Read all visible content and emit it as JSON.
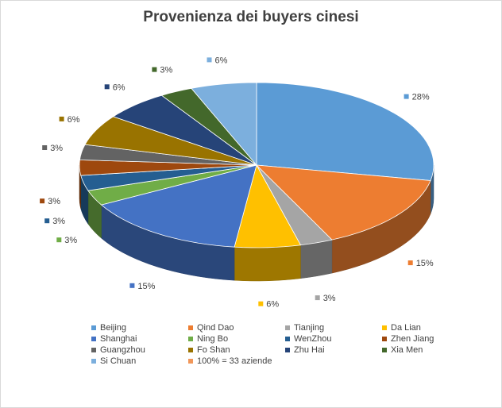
{
  "chart_data": {
    "type": "pie",
    "title": "Provenienza dei buyers cinesi",
    "slices": [
      {
        "label": "Beijing",
        "value": 28,
        "value_label": "28%",
        "color": "#5b9bd5"
      },
      {
        "label": "Qind Dao",
        "value": 15,
        "value_label": "15%",
        "color": "#ed7d31"
      },
      {
        "label": "Tianjing",
        "value": 3,
        "value_label": "3%",
        "color": "#a5a5a5"
      },
      {
        "label": "Da Lian",
        "value": 6,
        "value_label": "6%",
        "color": "#ffc000"
      },
      {
        "label": "Shanghai",
        "value": 15,
        "value_label": "15%",
        "color": "#4472c4"
      },
      {
        "label": "Ning Bo",
        "value": 3,
        "value_label": "3%",
        "color": "#70ad47"
      },
      {
        "label": "WenZhou",
        "value": 3,
        "value_label": "3%",
        "color": "#255e91"
      },
      {
        "label": "Zhen Jiang",
        "value": 3,
        "value_label": "3%",
        "color": "#9e480e"
      },
      {
        "label": "Guangzhou",
        "value": 3,
        "value_label": "3%",
        "color": "#636363"
      },
      {
        "label": "Fo Shan",
        "value": 6,
        "value_label": "6%",
        "color": "#997300"
      },
      {
        "label": "Zhu Hai",
        "value": 6,
        "value_label": "6%",
        "color": "#264478"
      },
      {
        "label": "Xia Men",
        "value": 3,
        "value_label": "3%",
        "color": "#43682b"
      },
      {
        "label": "Si Chuan",
        "value": 6,
        "value_label": "6%",
        "color": "#7cafdd"
      }
    ],
    "legend_extra": [
      {
        "label": "100% = 33 aziende",
        "color": "#f1975a"
      }
    ],
    "legend_position": "bottom"
  }
}
